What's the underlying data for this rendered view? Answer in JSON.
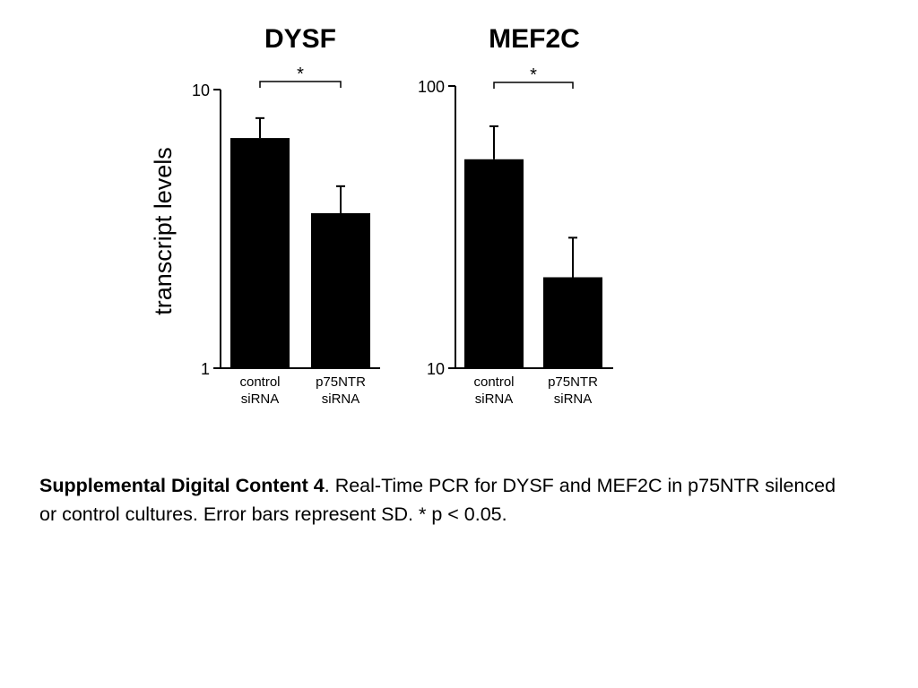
{
  "chart_data": [
    {
      "type": "bar",
      "title": "DYSF",
      "ylabel": "transcript levels",
      "yscale": "log",
      "ylim": [
        1,
        10
      ],
      "yticks": [
        "1",
        "10"
      ],
      "categories": [
        "control\nsiRNA",
        "p75NTR\nsiRNA"
      ],
      "values": [
        6.7,
        3.6
      ],
      "error_upper": [
        7.9,
        4.5
      ],
      "significance": {
        "label": "*",
        "between": [
          0,
          1
        ]
      },
      "grid": false,
      "color": "#000000"
    },
    {
      "type": "bar",
      "title": "MEF2C",
      "ylabel": "",
      "yscale": "log",
      "ylim": [
        10,
        100
      ],
      "yticks": [
        "10",
        "100"
      ],
      "categories": [
        "control\nsiRNA",
        "p75NTR\nsiRNA"
      ],
      "values": [
        55,
        21
      ],
      "error_upper": [
        72,
        29
      ],
      "significance": {
        "label": "*",
        "between": [
          0,
          1
        ]
      },
      "grid": false,
      "color": "#000000"
    }
  ],
  "caption": {
    "bold": "Supplemental Digital Content 4",
    "text": ". Real-Time PCR for DYSF and MEF2C in p75NTR silenced or control cultures. Error bars represent SD. * p < 0.05."
  }
}
